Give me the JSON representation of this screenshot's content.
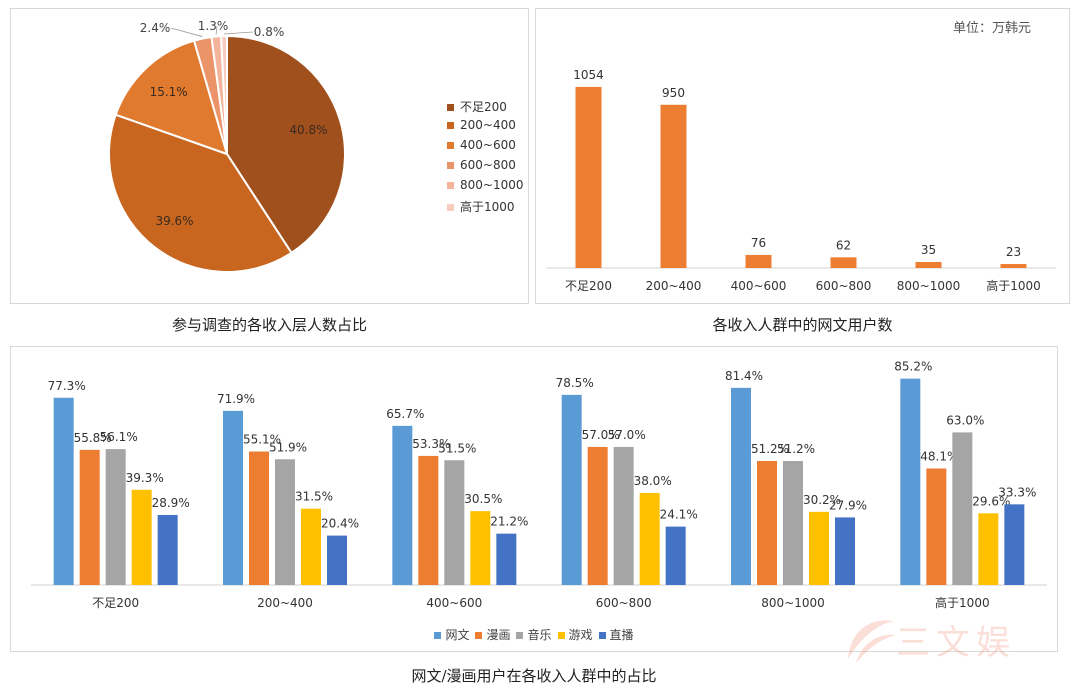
{
  "colors": {
    "pie": [
      "#a0501d",
      "#c8661f",
      "#e07a2e",
      "#eb9469",
      "#f3b49b",
      "#f7ccbe"
    ],
    "bar": "#ed7d31",
    "grouped": [
      "#5b9bd5",
      "#ed7d31",
      "#a5a5a5",
      "#ffc000",
      "#4472c4"
    ],
    "watermark": "#f2a38f"
  },
  "captions": {
    "pie": "参与调查的各收入层人数占比",
    "bar": "各收入人群中的网文用户数",
    "grouped": "网文/漫画用户在各收入人群中的占比"
  },
  "watermark": {
    "text": "三文娱",
    "icon": "brand-logo-icon"
  },
  "chart_data": [
    {
      "type": "pie",
      "title": "参与调查的各收入层人数占比",
      "categories": [
        "不足200",
        "200~400",
        "400~600",
        "600~800",
        "800~1000",
        "高于1000"
      ],
      "values": [
        40.8,
        39.6,
        15.1,
        2.4,
        1.3,
        0.8
      ],
      "data_labels": [
        "40.8%",
        "39.6%",
        "15.1%",
        "2.4%",
        "1.3%",
        "0.8%"
      ],
      "legend_position": "right"
    },
    {
      "type": "bar",
      "title": "各收入人群中的网文用户数",
      "unit_label": "单位：万韩元",
      "categories": [
        "不足200",
        "200~400",
        "400~600",
        "600~800",
        "800~1000",
        "高于1000"
      ],
      "values": [
        1054,
        950,
        76,
        62,
        35,
        23
      ],
      "ylim": [
        0,
        1100
      ],
      "grid": false
    },
    {
      "type": "bar",
      "title": "网文/漫画用户在各收入人群中的占比",
      "categories": [
        "不足200",
        "200~400",
        "400~600",
        "600~800",
        "800~1000",
        "高于1000"
      ],
      "series": [
        {
          "name": "网文",
          "values": [
            77.3,
            71.9,
            65.7,
            78.5,
            81.4,
            85.2
          ]
        },
        {
          "name": "漫画",
          "values": [
            55.8,
            55.1,
            53.3,
            57.0,
            51.2,
            48.1
          ]
        },
        {
          "name": "音乐",
          "values": [
            56.1,
            51.9,
            51.5,
            57.0,
            51.2,
            63.0
          ]
        },
        {
          "name": "游戏",
          "values": [
            39.3,
            31.5,
            30.5,
            38.0,
            30.2,
            29.6
          ]
        },
        {
          "name": "直播",
          "values": [
            28.9,
            20.4,
            21.2,
            24.1,
            27.9,
            33.3
          ]
        }
      ],
      "data_labels": [
        [
          "77.3%",
          "71.9%",
          "65.7%",
          "78.5%",
          "81.4%",
          "85.2%"
        ],
        [
          "55.8%",
          "55.1%",
          "53.3%",
          "57.0%",
          "51.2%",
          "48.1%"
        ],
        [
          "56.1%",
          "51.9%",
          "51.5%",
          "57.0%",
          "51.2%",
          "63.0%"
        ],
        [
          "39.3%",
          "31.5%",
          "30.5%",
          "38.0%",
          "30.2%",
          "29.6%"
        ],
        [
          "28.9%",
          "20.4%",
          "21.2%",
          "24.1%",
          "27.9%",
          "33.3%"
        ]
      ],
      "ylim": [
        0,
        90
      ],
      "legend_position": "bottom",
      "grid": false
    }
  ]
}
